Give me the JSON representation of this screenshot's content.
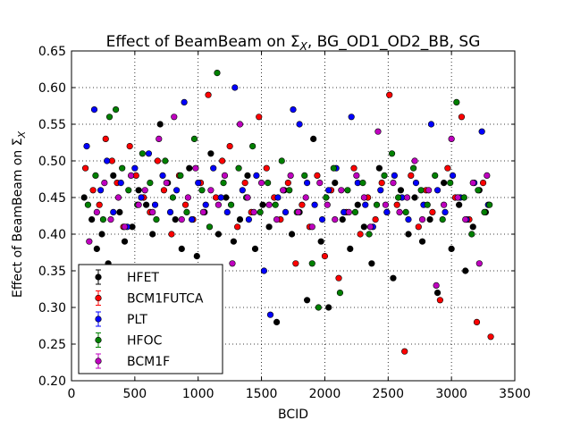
{
  "chart_data": {
    "type": "scatter",
    "title": "Effect of BeamBeam on Σ",
    "title_sub": "X",
    "title_suffix": ", BG_OD1_OD2_BB, SG",
    "xlabel": "BCID",
    "ylabel": "Effect of BeamBeam on Σ",
    "ylabel_sub": "X",
    "xlim": [
      0,
      3500
    ],
    "ylim": [
      0.2,
      0.65
    ],
    "xticks": [
      0,
      500,
      1000,
      1500,
      2000,
      2500,
      3000,
      3500
    ],
    "yticks": [
      0.2,
      0.25,
      0.3,
      0.35,
      0.4,
      0.45,
      0.5,
      0.55,
      0.6,
      0.65
    ],
    "xtick_labels": [
      "0",
      "500",
      "1000",
      "1500",
      "2000",
      "2500",
      "3000",
      "3500"
    ],
    "ytick_labels": [
      "0.20",
      "0.25",
      "0.30",
      "0.35",
      "0.40",
      "0.45",
      "0.50",
      "0.55",
      "0.60",
      "0.65"
    ],
    "grid": true,
    "legend_position": "lower-left",
    "series": [
      {
        "name": "HFET",
        "color": "#000000",
        "x": [
          100,
          160,
          200,
          240,
          290,
          330,
          380,
          420,
          480,
          530,
          590,
          640,
          700,
          760,
          820,
          870,
          930,
          990,
          1050,
          1100,
          1160,
          1220,
          1280,
          1330,
          1390,
          1450,
          1510,
          1560,
          1620,
          1680,
          1740,
          1800,
          1860,
          1910,
          1970,
          2030,
          2080,
          2140,
          2200,
          2260,
          2310,
          2370,
          2430,
          2490,
          2540,
          2600,
          2660,
          2710,
          2770,
          2830,
          2890,
          2940,
          3000,
          3060,
          3110,
          3170,
          3220,
          3270
        ],
        "y": [
          0.45,
          0.42,
          0.38,
          0.4,
          0.36,
          0.48,
          0.43,
          0.39,
          0.41,
          0.46,
          0.44,
          0.4,
          0.55,
          0.47,
          0.42,
          0.38,
          0.49,
          0.37,
          0.43,
          0.51,
          0.4,
          0.45,
          0.39,
          0.42,
          0.48,
          0.38,
          0.44,
          0.41,
          0.28,
          0.46,
          0.4,
          0.43,
          0.31,
          0.53,
          0.39,
          0.3,
          0.47,
          0.42,
          0.38,
          0.44,
          0.41,
          0.36,
          0.49,
          0.43,
          0.34,
          0.46,
          0.4,
          0.45,
          0.39,
          0.42,
          0.32,
          0.47,
          0.38,
          0.44,
          0.35,
          0.41,
          0.46,
          0.43
        ]
      },
      {
        "name": "BCM1FUTCA",
        "color": "#ff0000",
        "x": [
          110,
          170,
          220,
          270,
          320,
          360,
          410,
          460,
          510,
          570,
          620,
          680,
          730,
          790,
          850,
          900,
          960,
          1020,
          1080,
          1140,
          1190,
          1250,
          1310,
          1370,
          1420,
          1480,
          1540,
          1600,
          1650,
          1710,
          1770,
          1820,
          1880,
          1940,
          2000,
          2050,
          2110,
          2170,
          2230,
          2280,
          2340,
          2400,
          2450,
          2510,
          2570,
          2630,
          2680,
          2740,
          2800,
          2850,
          2910,
          2970,
          3030,
          3080,
          3140,
          3200,
          3250,
          3310
        ],
        "y": [
          0.49,
          0.46,
          0.44,
          0.53,
          0.5,
          0.47,
          0.41,
          0.52,
          0.48,
          0.45,
          0.43,
          0.5,
          0.46,
          0.4,
          0.48,
          0.44,
          0.42,
          0.47,
          0.59,
          0.45,
          0.5,
          0.52,
          0.41,
          0.47,
          0.43,
          0.56,
          0.49,
          0.45,
          0.42,
          0.47,
          0.36,
          0.44,
          0.41,
          0.48,
          0.37,
          0.46,
          0.34,
          0.43,
          0.49,
          0.4,
          0.45,
          0.42,
          0.47,
          0.59,
          0.44,
          0.24,
          0.48,
          0.41,
          0.46,
          0.43,
          0.31,
          0.49,
          0.45,
          0.56,
          0.42,
          0.28,
          0.47,
          0.26
        ]
      },
      {
        "name": "PLT",
        "color": "#0000ff",
        "x": [
          120,
          180,
          230,
          280,
          330,
          390,
          440,
          500,
          550,
          610,
          660,
          720,
          780,
          830,
          890,
          950,
          1000,
          1060,
          1120,
          1180,
          1230,
          1290,
          1350,
          1400,
          1460,
          1520,
          1570,
          1630,
          1690,
          1750,
          1800,
          1860,
          1920,
          1980,
          2030,
          2090,
          2150,
          2210,
          2260,
          2320,
          2380,
          2440,
          2490,
          2550,
          2610,
          2660,
          2720,
          2780,
          2840,
          2890,
          2950,
          3010,
          3070,
          3120,
          3180,
          3240,
          3290
        ],
        "y": [
          0.52,
          0.57,
          0.46,
          0.5,
          0.43,
          0.47,
          0.41,
          0.49,
          0.45,
          0.51,
          0.44,
          0.48,
          0.43,
          0.46,
          0.58,
          0.42,
          0.47,
          0.44,
          0.49,
          0.45,
          0.43,
          0.6,
          0.46,
          0.42,
          0.48,
          0.35,
          0.29,
          0.45,
          0.43,
          0.57,
          0.55,
          0.47,
          0.44,
          0.42,
          0.46,
          0.49,
          0.43,
          0.56,
          0.47,
          0.44,
          0.41,
          0.46,
          0.43,
          0.48,
          0.45,
          0.42,
          0.47,
          0.44,
          0.55,
          0.46,
          0.43,
          0.48,
          0.45,
          0.42,
          0.47,
          0.54,
          0.44
        ]
      },
      {
        "name": "HFOC",
        "color": "#008000",
        "x": [
          130,
          190,
          250,
          300,
          350,
          400,
          450,
          520,
          560,
          620,
          670,
          740,
          800,
          860,
          910,
          970,
          1030,
          1090,
          1150,
          1200,
          1260,
          1320,
          1380,
          1430,
          1490,
          1550,
          1610,
          1660,
          1720,
          1780,
          1840,
          1900,
          1950,
          2010,
          2070,
          2120,
          2180,
          2240,
          2300,
          2350,
          2410,
          2470,
          2530,
          2580,
          2640,
          2700,
          2760,
          2810,
          2870,
          2930,
          2990,
          3040,
          3100,
          3160,
          3210,
          3260,
          3300
        ],
        "y": [
          0.44,
          0.48,
          0.42,
          0.56,
          0.57,
          0.49,
          0.46,
          0.44,
          0.51,
          0.47,
          0.42,
          0.5,
          0.45,
          0.48,
          0.43,
          0.53,
          0.46,
          0.41,
          0.62,
          0.47,
          0.44,
          0.49,
          0.45,
          0.52,
          0.43,
          0.47,
          0.44,
          0.5,
          0.46,
          0.43,
          0.48,
          0.36,
          0.3,
          0.45,
          0.49,
          0.32,
          0.46,
          0.43,
          0.47,
          0.4,
          0.44,
          0.48,
          0.51,
          0.45,
          0.43,
          0.49,
          0.46,
          0.44,
          0.48,
          0.42,
          0.47,
          0.58,
          0.45,
          0.4,
          0.46,
          0.43,
          0.44
        ]
      },
      {
        "name": "BCM1F",
        "color": "#bf00bf",
        "x": [
          140,
          200,
          260,
          310,
          370,
          420,
          470,
          530,
          580,
          640,
          690,
          750,
          810,
          870,
          920,
          980,
          1040,
          1100,
          1160,
          1210,
          1270,
          1330,
          1390,
          1440,
          1500,
          1560,
          1620,
          1670,
          1730,
          1790,
          1850,
          1900,
          1960,
          2020,
          2080,
          2130,
          2190,
          2250,
          2310,
          2360,
          2420,
          2480,
          2540,
          2590,
          2650,
          2710,
          2770,
          2820,
          2880,
          2940,
          3000,
          3050,
          3110,
          3170,
          3220,
          3280
        ],
        "y": [
          0.39,
          0.43,
          0.47,
          0.42,
          0.45,
          0.41,
          0.48,
          0.44,
          0.46,
          0.43,
          0.53,
          0.47,
          0.56,
          0.42,
          0.45,
          0.49,
          0.43,
          0.46,
          0.44,
          0.48,
          0.36,
          0.55,
          0.45,
          0.43,
          0.47,
          0.44,
          0.42,
          0.46,
          0.48,
          0.43,
          0.45,
          0.41,
          0.47,
          0.44,
          0.42,
          0.46,
          0.43,
          0.48,
          0.45,
          0.41,
          0.54,
          0.44,
          0.47,
          0.43,
          0.45,
          0.5,
          0.42,
          0.46,
          0.33,
          0.44,
          0.53,
          0.45,
          0.42,
          0.47,
          0.36,
          0.48
        ]
      }
    ]
  }
}
